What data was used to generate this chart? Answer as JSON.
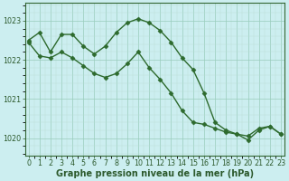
{
  "line1": {
    "x": [
      0,
      1,
      2,
      3,
      4,
      5,
      6,
      7,
      8,
      9,
      10,
      11,
      12,
      13,
      14,
      15,
      16,
      17,
      18,
      19,
      20,
      21,
      22,
      23
    ],
    "y": [
      1022.5,
      1022.7,
      1022.2,
      1022.65,
      1022.65,
      1022.35,
      1022.15,
      1022.35,
      1022.7,
      1022.95,
      1023.05,
      1022.95,
      1022.75,
      1022.45,
      1022.05,
      1021.75,
      1021.15,
      1020.4,
      1020.2,
      1020.1,
      1020.05,
      1020.25,
      1020.3,
      1020.1
    ],
    "color": "#2d6a2d",
    "marker": "D",
    "markersize": 2.5,
    "linewidth": 1.0
  },
  "line2": {
    "x": [
      0,
      1,
      2,
      3,
      4,
      5,
      6,
      7,
      8,
      9,
      10,
      11,
      12,
      13,
      14,
      15,
      16,
      17,
      18,
      19,
      20,
      21,
      22,
      23
    ],
    "y": [
      1022.45,
      1022.1,
      1022.05,
      1022.2,
      1022.05,
      1021.85,
      1021.65,
      1021.55,
      1021.65,
      1021.9,
      1022.2,
      1021.8,
      1021.5,
      1021.15,
      1020.7,
      1020.4,
      1020.35,
      1020.25,
      1020.15,
      1020.1,
      1019.95,
      1020.2,
      1020.3,
      1020.1
    ],
    "color": "#2d6a2d",
    "marker": "D",
    "markersize": 2.5,
    "linewidth": 1.0
  },
  "xlim": [
    -0.3,
    23.3
  ],
  "ylim": [
    1019.55,
    1023.45
  ],
  "yticks": [
    1020,
    1021,
    1022,
    1023
  ],
  "xticks": [
    0,
    1,
    2,
    3,
    4,
    5,
    6,
    7,
    8,
    9,
    10,
    11,
    12,
    13,
    14,
    15,
    16,
    17,
    18,
    19,
    20,
    21,
    22,
    23
  ],
  "xlabel": "Graphe pression niveau de la mer (hPa)",
  "bg_color": "#cceef0",
  "grid_major_color": "#99ccbb",
  "grid_minor_color": "#bbddd4",
  "axis_color": "#336633",
  "text_color": "#2d5a2d",
  "tick_color": "#2d5a2d",
  "xlabel_fontsize": 7.0,
  "tick_fontsize": 5.8
}
